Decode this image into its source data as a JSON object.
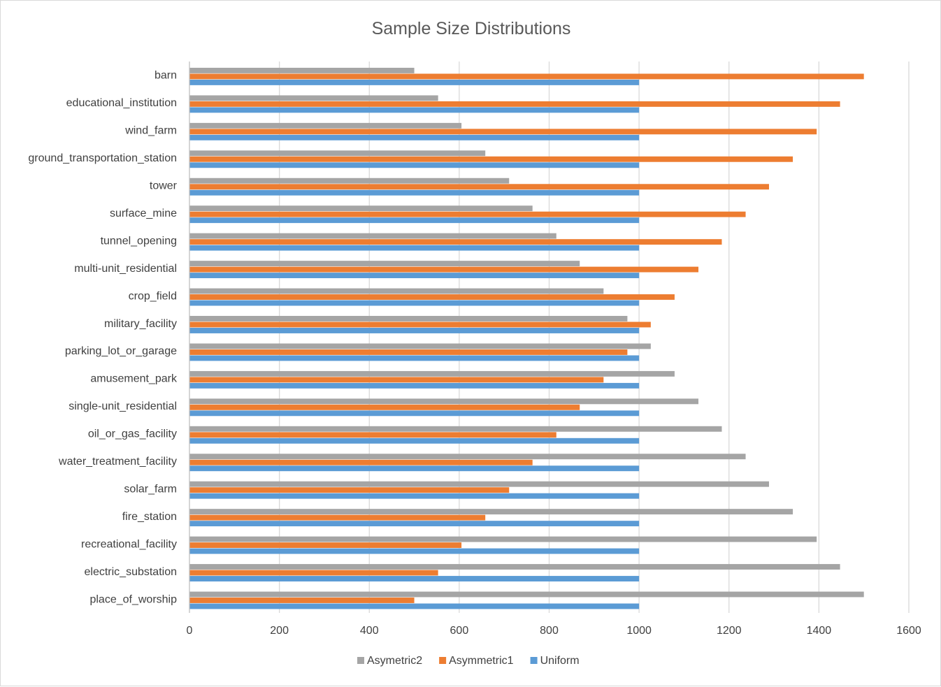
{
  "chart_data": {
    "type": "bar",
    "orientation": "horizontal",
    "title": "Sample Size Distributions",
    "categories": [
      "barn",
      "educational_institution",
      "wind_farm",
      "ground_transportation_station",
      "tower",
      "surface_mine",
      "tunnel_opening",
      "multi-unit_residential",
      "crop_field",
      "military_facility",
      "parking_lot_or_garage",
      "amusement_park",
      "single-unit_residential",
      "oil_or_gas_facility",
      "water_treatment_facility",
      "solar_farm",
      "fire_station",
      "recreational_facility",
      "electric_substation",
      "place_of_worship"
    ],
    "series": [
      {
        "name": "Asymetric2",
        "color": "#a5a5a5",
        "values": [
          500,
          553,
          605,
          658,
          711,
          763,
          816,
          868,
          921,
          974,
          1026,
          1079,
          1132,
          1184,
          1237,
          1289,
          1342,
          1395,
          1447,
          1500
        ]
      },
      {
        "name": "Asymmetric1",
        "color": "#ed7d31",
        "values": [
          1500,
          1447,
          1395,
          1342,
          1289,
          1237,
          1184,
          1132,
          1079,
          1026,
          974,
          921,
          868,
          816,
          763,
          711,
          658,
          605,
          553,
          500
        ]
      },
      {
        "name": "Uniform",
        "color": "#5b9bd5",
        "values": [
          1000,
          1000,
          1000,
          1000,
          1000,
          1000,
          1000,
          1000,
          1000,
          1000,
          1000,
          1000,
          1000,
          1000,
          1000,
          1000,
          1000,
          1000,
          1000,
          1000
        ]
      }
    ],
    "xlim": [
      0,
      1600
    ],
    "xticks": [
      0,
      200,
      400,
      600,
      800,
      1000,
      1200,
      1400,
      1600
    ],
    "grid": true,
    "legend": "bottom"
  }
}
